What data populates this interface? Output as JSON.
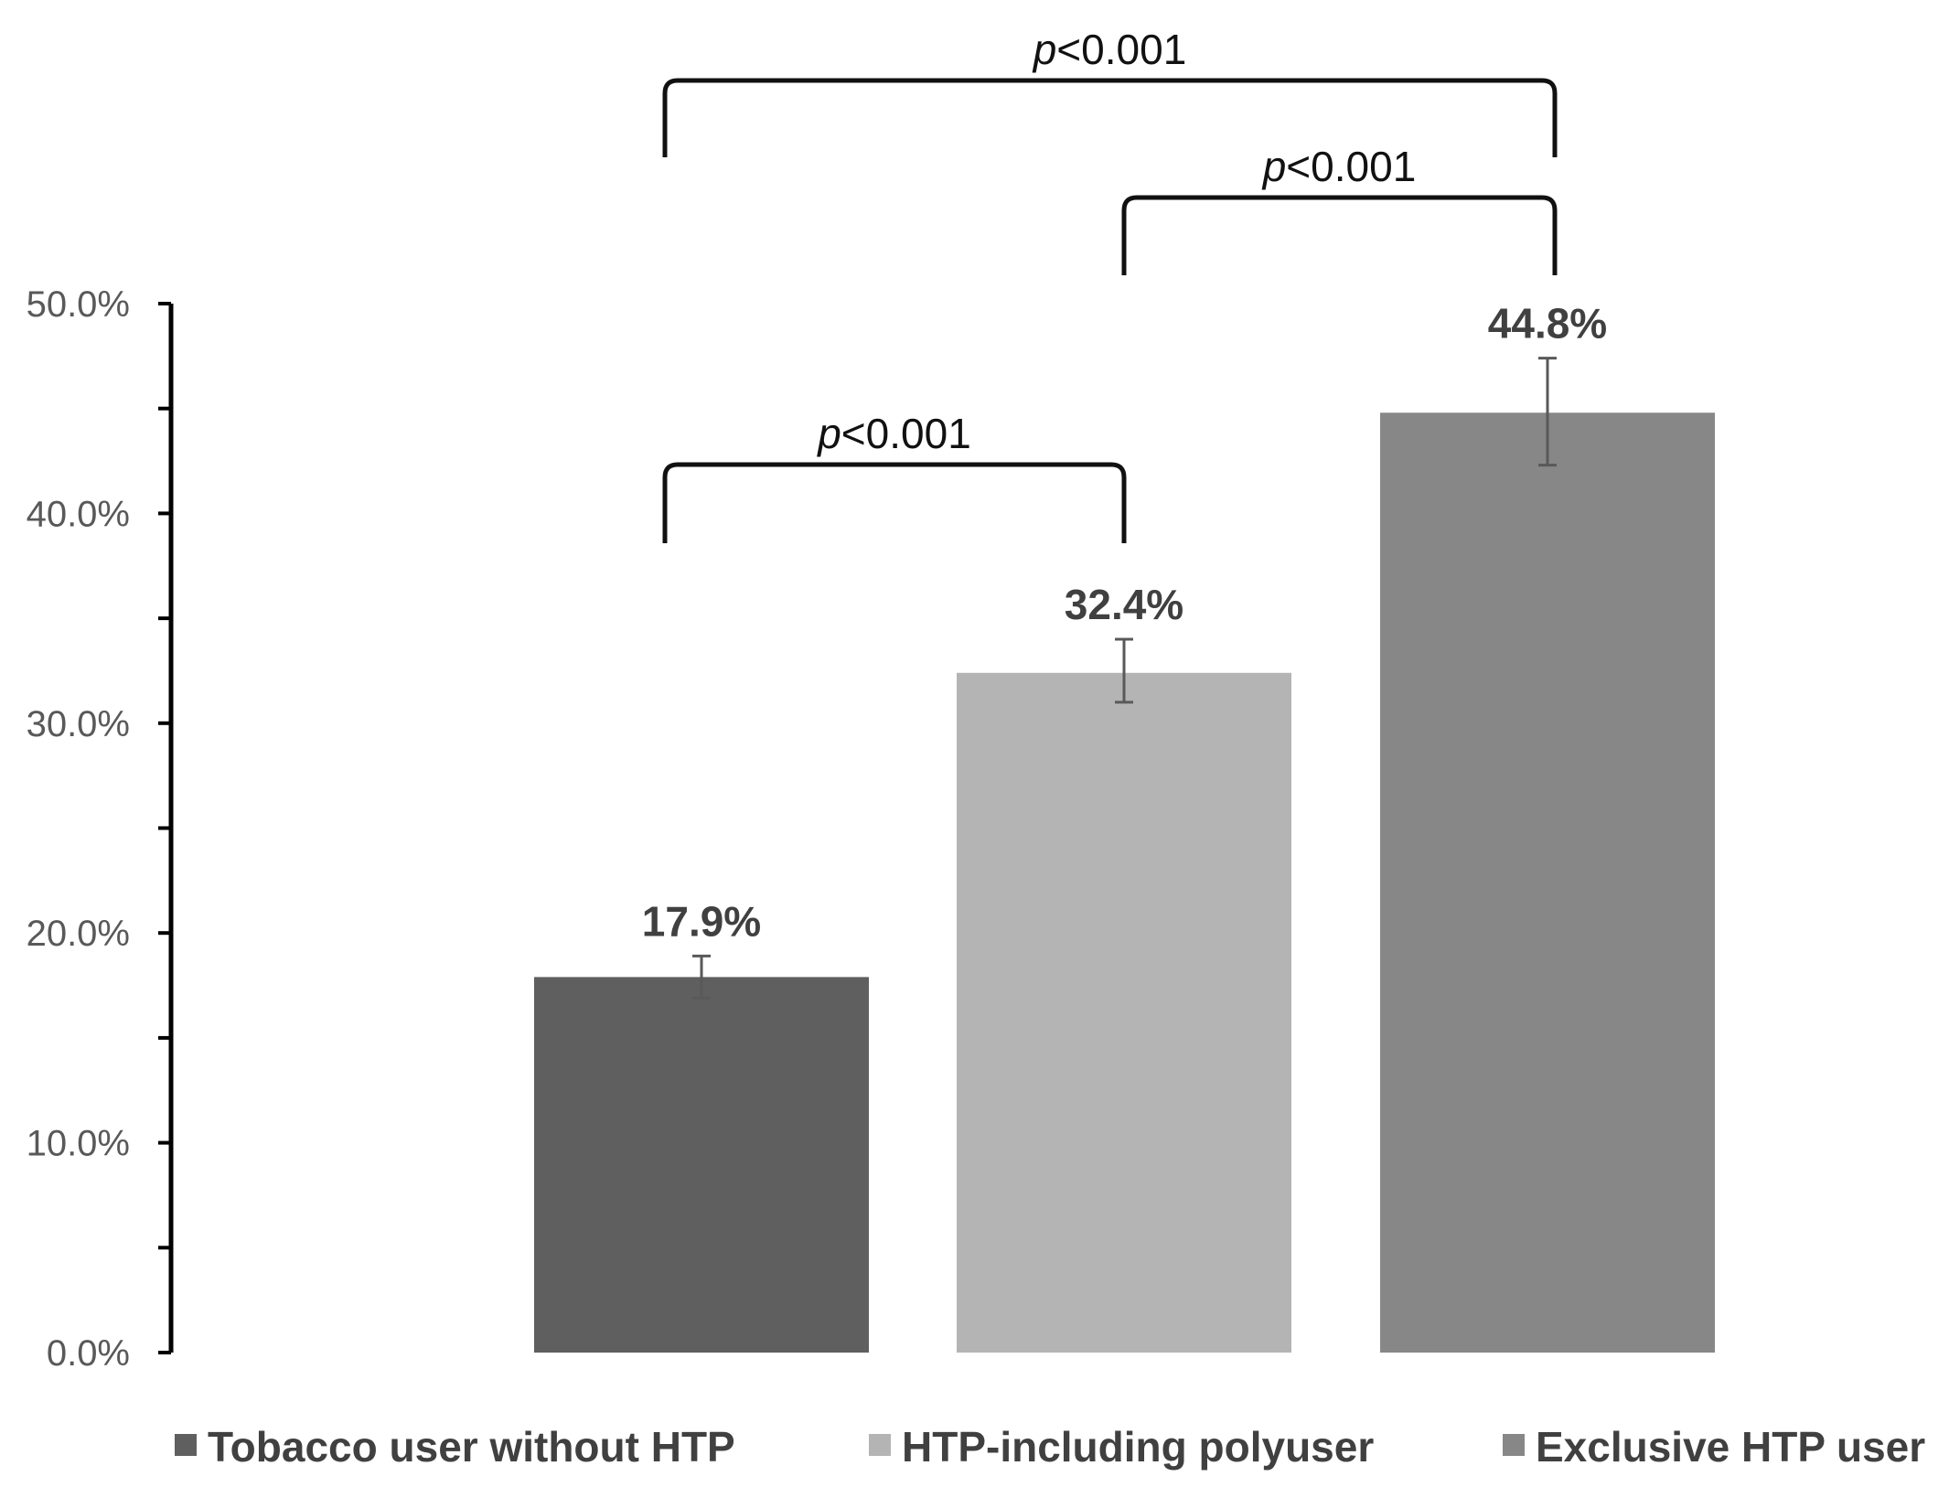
{
  "chart_data": {
    "type": "bar",
    "categories": [
      "Tobacco user without HTP",
      "HTP-including polyuser",
      "Exclusive HTP user"
    ],
    "values": [
      17.9,
      32.4,
      44.8
    ],
    "error_bars": [
      {
        "low": 16.9,
        "high": 18.9
      },
      {
        "low": 31.0,
        "high": 34.0
      },
      {
        "low": 42.3,
        "high": 47.4
      }
    ],
    "data_labels": [
      "17.9%",
      "32.4%",
      "44.8%"
    ],
    "colors": [
      "#5f5f5f",
      "#b4b4b4",
      "#878787"
    ],
    "ylim": [
      0,
      50
    ],
    "yticks": [
      {
        "value": 0,
        "label": "0.0%"
      },
      {
        "value": 10,
        "label": "10.0%"
      },
      {
        "value": 20,
        "label": "20.0%"
      },
      {
        "value": 30,
        "label": "30.0%"
      },
      {
        "value": 40,
        "label": "40.0%"
      },
      {
        "value": 50,
        "label": "50.0%"
      }
    ],
    "minor_tick_step": 5,
    "grid": false,
    "legend_position": "bottom",
    "significance": [
      {
        "from": 0,
        "to": 2,
        "prefix": "p",
        "text": "<0.001",
        "level": 1
      },
      {
        "from": 1,
        "to": 2,
        "prefix": "p",
        "text": "<0.001",
        "level": 2
      },
      {
        "from": 0,
        "to": 1,
        "prefix": "p",
        "text": "<0.001",
        "level": 3
      }
    ]
  }
}
